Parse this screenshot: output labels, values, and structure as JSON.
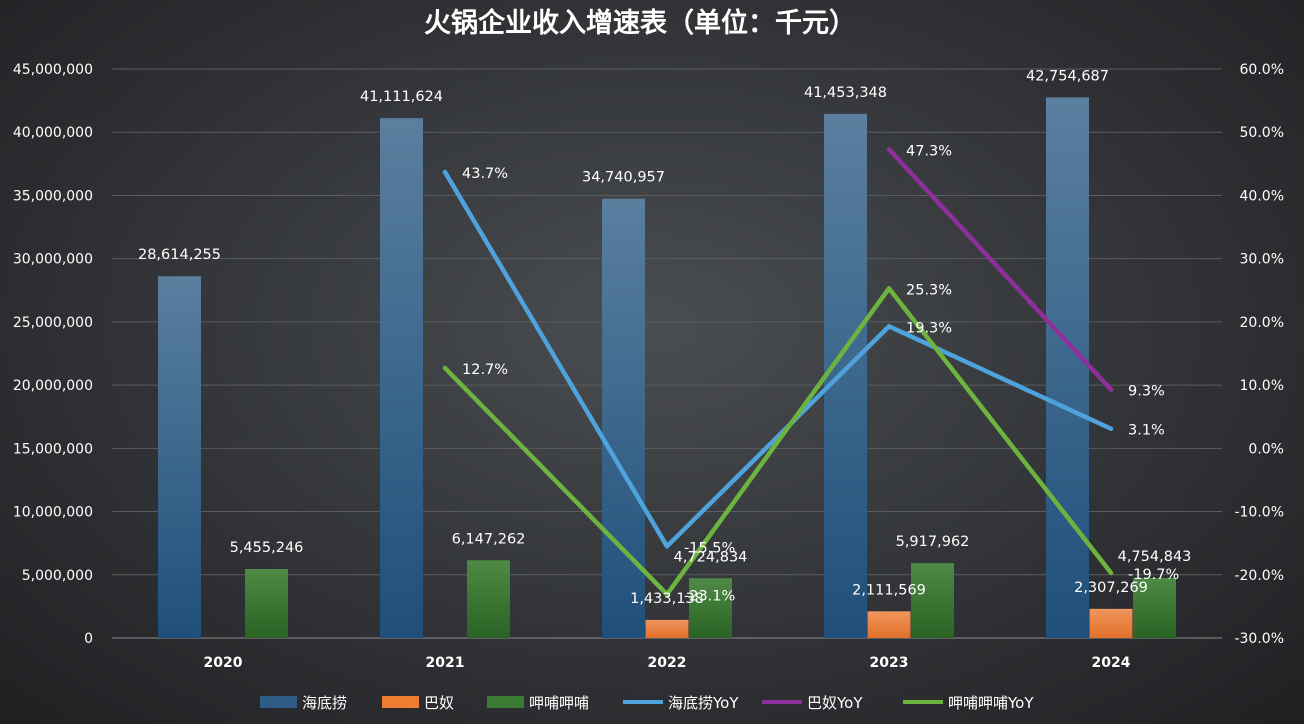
{
  "chart_data": {
    "type": "bar",
    "title": "火锅企业收入增速表（单位：千元）",
    "categories": [
      "2020",
      "2021",
      "2022",
      "2023",
      "2024"
    ],
    "ylim": [
      0,
      45000000
    ],
    "y2lim": [
      -0.3,
      0.6
    ],
    "y_ticks": [
      "0",
      "5,000,000",
      "10,000,000",
      "15,000,000",
      "20,000,000",
      "25,000,000",
      "30,000,000",
      "35,000,000",
      "40,000,000",
      "45,000,000"
    ],
    "y2_ticks": [
      "-30.0%",
      "-20.0%",
      "-10.0%",
      "0.0%",
      "10.0%",
      "20.0%",
      "30.0%",
      "40.0%",
      "50.0%",
      "60.0%"
    ],
    "grid": true,
    "legend_position": "bottom",
    "bar_series": [
      {
        "name": "海底捞",
        "color": "#2e5c86",
        "values": [
          28614255,
          41111624,
          34740957,
          41453348,
          42754687
        ],
        "labels": [
          "28,614,255",
          "41,111,624",
          "34,740,957",
          "41,453,348",
          "42,754,687"
        ]
      },
      {
        "name": "巴奴",
        "color": "#ed7d31",
        "values": [
          null,
          null,
          1433138,
          2111569,
          2307269
        ],
        "labels": [
          "",
          "",
          "1,433,138",
          "2,111,569",
          "2,307,269"
        ]
      },
      {
        "name": "呷哺呷哺",
        "color": "#3b7a33",
        "values": [
          5455246,
          6147262,
          4724834,
          5917962,
          4754843
        ],
        "labels": [
          "5,455,246",
          "6,147,262",
          "4,724,834",
          "5,917,962",
          "4,754,843"
        ]
      }
    ],
    "line_series": [
      {
        "name": "海底捞YoY",
        "color": "#4ea3dd",
        "values": [
          null,
          0.437,
          -0.155,
          0.193,
          0.031
        ],
        "labels": [
          "",
          "43.7%",
          "-15.5%",
          "19.3%",
          "3.1%"
        ]
      },
      {
        "name": "巴奴YoY",
        "color": "#8e2f9b",
        "values": [
          null,
          null,
          null,
          0.473,
          0.093
        ],
        "labels": [
          "",
          "",
          "",
          "47.3%",
          "9.3%"
        ]
      },
      {
        "name": "呷哺呷哺YoY",
        "color": "#6db33f",
        "values": [
          null,
          0.127,
          -0.231,
          0.253,
          -0.197
        ],
        "labels": [
          "",
          "12.7%",
          "-23.1%",
          "25.3%",
          "-19.7%"
        ]
      }
    ]
  }
}
